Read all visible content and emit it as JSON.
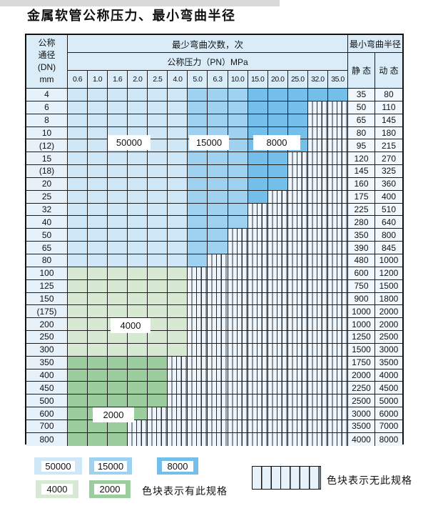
{
  "page": {
    "title": "金属软管公称压力、最小弯曲半径"
  },
  "colors": {
    "blue_light": "#cfe7f7",
    "blue_medium": "#9fd2f0",
    "blue_dark": "#74bfea",
    "green_light": "#d7e8d3",
    "green_dark": "#9ccd9e",
    "header_bg": "#d9ecf8",
    "hatch_bg": "#eef5fb",
    "grid": "#1c1c1c"
  },
  "table": {
    "header": {
      "dn_lines": [
        "公称",
        "通径",
        "(DN)",
        "mm"
      ],
      "cycles_title": "最少弯曲次数，次",
      "pressure_title": "公称压力（PN）MPa",
      "radius_title": "最小弯曲半径",
      "static_label": "静 态",
      "dynamic_label": "动 态",
      "pressures": [
        "0.6",
        "1.0",
        "1.6",
        "2.0",
        "2.5",
        "4.0",
        "5.0",
        "6.3",
        "10.0",
        "15.0",
        "20.0",
        "25.0",
        "32.0",
        "35.0"
      ]
    },
    "region_labels": [
      {
        "text": "50000"
      },
      {
        "text": "15000"
      },
      {
        "text": "8000"
      },
      {
        "text": "4000"
      },
      {
        "text": "2000"
      }
    ],
    "rows": [
      {
        "dn": "4",
        "max": "35.0",
        "region": "blue",
        "static": "35",
        "dynamic": "80"
      },
      {
        "dn": "6",
        "max": "25.0",
        "region": "blue",
        "static": "50",
        "dynamic": "110"
      },
      {
        "dn": "8",
        "max": "25.0",
        "region": "blue",
        "static": "65",
        "dynamic": "145"
      },
      {
        "dn": "10",
        "max": "25.0",
        "region": "blue",
        "static": "80",
        "dynamic": "180"
      },
      {
        "dn": "(12)",
        "max": "25.0",
        "region": "blue",
        "static": "95",
        "dynamic": "215"
      },
      {
        "dn": "15",
        "max": "20.0",
        "region": "blue",
        "static": "120",
        "dynamic": "270"
      },
      {
        "dn": "(18)",
        "max": "20.0",
        "region": "blue",
        "static": "145",
        "dynamic": "325"
      },
      {
        "dn": "20",
        "max": "20.0",
        "region": "blue",
        "static": "160",
        "dynamic": "360"
      },
      {
        "dn": "25",
        "max": "15.0",
        "region": "blue",
        "static": "175",
        "dynamic": "400"
      },
      {
        "dn": "32",
        "max": "10.0",
        "region": "blue",
        "static": "225",
        "dynamic": "510"
      },
      {
        "dn": "40",
        "max": "10.0",
        "region": "blue",
        "static": "280",
        "dynamic": "640"
      },
      {
        "dn": "50",
        "max": "6.3",
        "region": "blue",
        "static": "350",
        "dynamic": "800"
      },
      {
        "dn": "65",
        "max": "6.3",
        "region": "blue",
        "static": "390",
        "dynamic": "845"
      },
      {
        "dn": "80",
        "max": "5.0",
        "region": "blue",
        "static": "480",
        "dynamic": "1000"
      },
      {
        "dn": "100",
        "max": "4.0",
        "region": "green_light",
        "static": "600",
        "dynamic": "1200"
      },
      {
        "dn": "125",
        "max": "4.0",
        "region": "green_light",
        "static": "750",
        "dynamic": "1500"
      },
      {
        "dn": "150",
        "max": "4.0",
        "region": "green_light",
        "static": "900",
        "dynamic": "1800"
      },
      {
        "dn": "(175)",
        "max": "4.0",
        "region": "green_light",
        "static": "1000",
        "dynamic": "2000"
      },
      {
        "dn": "200",
        "max": "4.0",
        "region": "green_light",
        "static": "1000",
        "dynamic": "2000"
      },
      {
        "dn": "250",
        "max": "4.0",
        "region": "green_light",
        "static": "1250",
        "dynamic": "2500"
      },
      {
        "dn": "300",
        "max": "4.0",
        "region": "green_light",
        "static": "1500",
        "dynamic": "3000"
      },
      {
        "dn": "350",
        "max": "2.5",
        "region": "green_dark",
        "static": "1750",
        "dynamic": "3500"
      },
      {
        "dn": "400",
        "max": "2.5",
        "region": "green_dark",
        "static": "2000",
        "dynamic": "4000"
      },
      {
        "dn": "450",
        "max": "2.5",
        "region": "green_dark",
        "static": "2250",
        "dynamic": "4500"
      },
      {
        "dn": "500",
        "max": "2.5",
        "region": "green_dark",
        "static": "2500",
        "dynamic": "5000"
      },
      {
        "dn": "600",
        "max": "2.0",
        "region": "green_dark",
        "static": "3000",
        "dynamic": "6000"
      },
      {
        "dn": "700",
        "max": "1.6",
        "region": "green_dark",
        "static": "3500",
        "dynamic": "7000"
      },
      {
        "dn": "800",
        "max": "1.6",
        "region": "green_dark",
        "static": "4000",
        "dynamic": "8000"
      }
    ]
  },
  "legend": {
    "items": [
      {
        "label": "50000",
        "color_key": "blue_light"
      },
      {
        "label": "15000",
        "color_key": "blue_medium"
      },
      {
        "label": "8000",
        "color_key": "blue_dark"
      },
      {
        "label": "4000",
        "color_key": "green_light"
      },
      {
        "label": "2000",
        "color_key": "green_dark"
      }
    ],
    "has_spec_text": "色块表示有此规格",
    "no_spec_text": "色块表示无此规格"
  }
}
